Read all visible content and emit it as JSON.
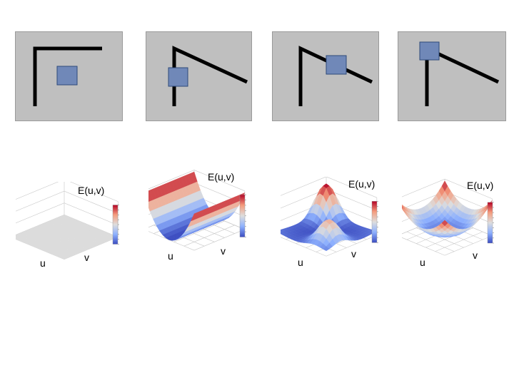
{
  "colors": {
    "panel_bg": "#bfbfbf",
    "window_fill": "#7088b8",
    "window_stroke": "#2e4a7a",
    "edge_stroke": "#000000",
    "flat_surface": "#dcdcdc",
    "colormap": "coolwarm"
  },
  "scenes": [
    {
      "case": "flat"
    },
    {
      "case": "edge"
    },
    {
      "case": "corner"
    },
    {
      "case": "corner-near"
    }
  ],
  "plots": [
    {
      "e_label": "E(u,v)",
      "u_label": "u",
      "v_label": "v",
      "surface": "flat"
    },
    {
      "e_label": "E(u,v)",
      "u_label": "u",
      "v_label": "v",
      "surface": "valley"
    },
    {
      "e_label": "E(u,v)",
      "u_label": "u",
      "v_label": "v",
      "surface": "peaks"
    },
    {
      "e_label": "E(u,v)",
      "u_label": "u",
      "v_label": "v",
      "surface": "bowl"
    }
  ]
}
